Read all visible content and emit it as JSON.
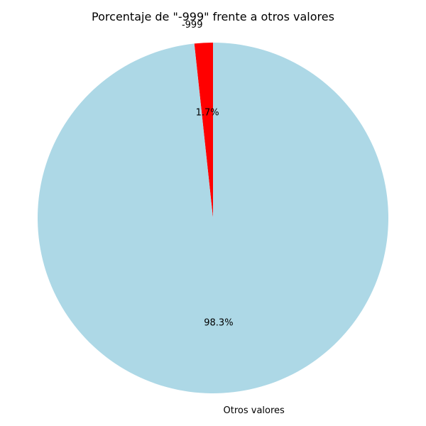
{
  "chart_data": {
    "type": "pie",
    "title": "Porcentaje de \"-999\" frente a otros valores",
    "labels": [
      "-999",
      "Otros valores"
    ],
    "percentages": [
      1.7,
      98.3
    ],
    "percent_labels": [
      "1.7%",
      "98.3%"
    ],
    "colors": [
      "#ff0000",
      "#add8e6"
    ],
    "start_angle_deg": 90,
    "direction": "counterclockwise"
  }
}
